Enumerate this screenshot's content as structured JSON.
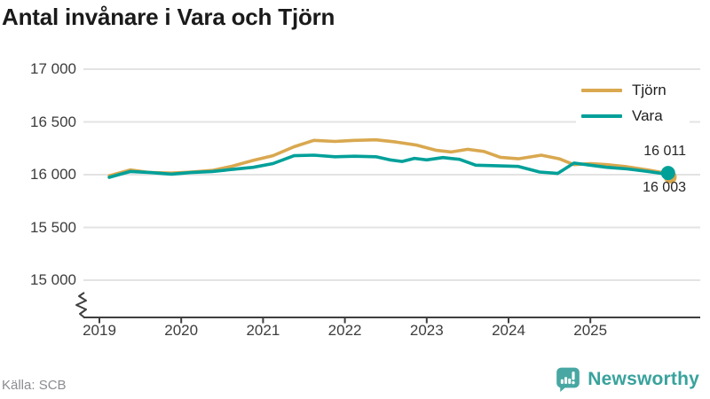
{
  "title": "Antal invånare i Vara och Tjörn",
  "source": "Källa: SCB",
  "branding": {
    "name": "Newsworthy",
    "logo_icon": "newsworthy-speech-bubble-bars-icon",
    "color": "#38a29c",
    "icon_color": "#48a7a2"
  },
  "legend": {
    "position": "top-right",
    "items": [
      {
        "label": "Tjörn",
        "color": "#d9a84f"
      },
      {
        "label": "Vara",
        "color": "#00a099"
      }
    ]
  },
  "annotations": {
    "tjorn_end": "16 011",
    "vara_end": "16 003"
  },
  "chart_data": {
    "type": "line",
    "title": "Antal invånare i Vara och Tjörn",
    "xlabel": "",
    "ylabel": "",
    "grid": "horizontal-only",
    "gridline_color": "#e3e3e3",
    "axis_color": "#3f3f3f",
    "legend_position": "top-right",
    "x_axis": {
      "ticks": [
        2019,
        2020,
        2021,
        2022,
        2023,
        2024,
        2025
      ],
      "tick_labels": [
        "2019",
        "2020",
        "2021",
        "2022",
        "2023",
        "2024",
        "2025"
      ],
      "axis_break_at_origin": true
    },
    "y_axis": {
      "ticks": [
        {
          "label": "17 000",
          "value": 17000
        },
        {
          "label": "16 500",
          "value": 16500
        },
        {
          "label": "16 000",
          "value": 16000
        },
        {
          "label": "15 500",
          "value": 15500
        },
        {
          "label": "15 000",
          "value": 15000
        }
      ],
      "displayed_range": [
        15000,
        17000
      ]
    },
    "series": [
      {
        "name": "Tjörn",
        "color": "#d9a84f",
        "end_value": 16011,
        "end_label": "16 011",
        "points": [
          [
            2019.12,
            15990
          ],
          [
            2019.38,
            16045
          ],
          [
            2019.62,
            16020
          ],
          [
            2019.88,
            16015
          ],
          [
            2020.12,
            16025
          ],
          [
            2020.38,
            16040
          ],
          [
            2020.62,
            16080
          ],
          [
            2020.88,
            16135
          ],
          [
            2021.12,
            16180
          ],
          [
            2021.38,
            16265
          ],
          [
            2021.62,
            16325
          ],
          [
            2021.88,
            16315
          ],
          [
            2022.12,
            16325
          ],
          [
            2022.38,
            16330
          ],
          [
            2022.62,
            16310
          ],
          [
            2022.88,
            16280
          ],
          [
            2023.12,
            16230
          ],
          [
            2023.3,
            16215
          ],
          [
            2023.5,
            16240
          ],
          [
            2023.7,
            16220
          ],
          [
            2023.9,
            16165
          ],
          [
            2024.12,
            16150
          ],
          [
            2024.4,
            16185
          ],
          [
            2024.62,
            16150
          ],
          [
            2024.8,
            16095
          ],
          [
            2025.0,
            16105
          ],
          [
            2025.2,
            16095
          ],
          [
            2025.45,
            16075
          ],
          [
            2025.7,
            16045
          ],
          [
            2025.95,
            16011
          ]
        ]
      },
      {
        "name": "Vara",
        "color": "#00a099",
        "end_value": 16003,
        "end_label": "16 003",
        "points": [
          [
            2019.12,
            15975
          ],
          [
            2019.38,
            16030
          ],
          [
            2019.62,
            16020
          ],
          [
            2019.88,
            16005
          ],
          [
            2020.12,
            16020
          ],
          [
            2020.38,
            16030
          ],
          [
            2020.62,
            16050
          ],
          [
            2020.88,
            16070
          ],
          [
            2021.12,
            16105
          ],
          [
            2021.38,
            16180
          ],
          [
            2021.62,
            16185
          ],
          [
            2021.88,
            16170
          ],
          [
            2022.12,
            16175
          ],
          [
            2022.38,
            16170
          ],
          [
            2022.55,
            16140
          ],
          [
            2022.7,
            16125
          ],
          [
            2022.85,
            16155
          ],
          [
            2023.0,
            16140
          ],
          [
            2023.2,
            16162
          ],
          [
            2023.4,
            16145
          ],
          [
            2023.6,
            16090
          ],
          [
            2023.85,
            16085
          ],
          [
            2024.12,
            16078
          ],
          [
            2024.38,
            16025
          ],
          [
            2024.6,
            16012
          ],
          [
            2024.8,
            16110
          ],
          [
            2025.0,
            16090
          ],
          [
            2025.2,
            16070
          ],
          [
            2025.45,
            16055
          ],
          [
            2025.7,
            16030
          ],
          [
            2025.95,
            16003
          ]
        ]
      }
    ]
  }
}
